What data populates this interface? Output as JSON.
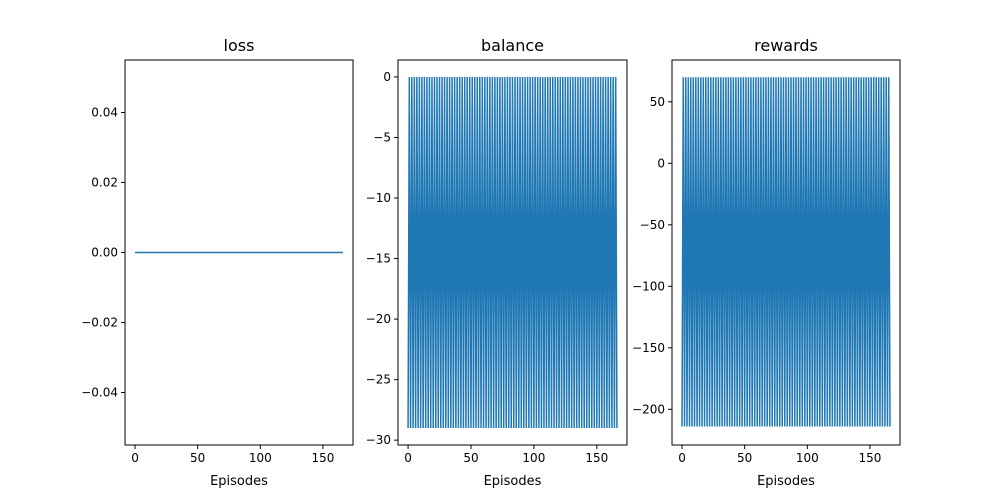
{
  "chart_data": [
    {
      "type": "line",
      "title": "loss",
      "xlabel": "Episodes",
      "ylabel": "",
      "xlim": [
        -8,
        174
      ],
      "ylim": [
        -0.055,
        0.055
      ],
      "xticks": [
        0,
        50,
        100,
        150
      ],
      "xtick_labels": [
        "0",
        "50",
        "100",
        "150"
      ],
      "yticks": [
        -0.04,
        -0.02,
        0.0,
        0.02,
        0.04
      ],
      "ytick_labels": [
        "−0.04",
        "−0.02",
        "0.00",
        "0.02",
        "0.04"
      ],
      "color": "#1f77b4",
      "grid": false,
      "series": [
        {
          "pattern": "constant",
          "x_start": 0,
          "x_end": 166,
          "value": 0.0
        }
      ]
    },
    {
      "type": "line",
      "title": "balance",
      "xlabel": "Episodes",
      "ylabel": "",
      "xlim": [
        -8,
        174
      ],
      "ylim": [
        -30.4,
        1.4
      ],
      "xticks": [
        0,
        50,
        100,
        150
      ],
      "xtick_labels": [
        "0",
        "50",
        "100",
        "150"
      ],
      "yticks": [
        -30,
        -25,
        -20,
        -15,
        -10,
        -5,
        0
      ],
      "ytick_labels": [
        "−30",
        "−25",
        "−20",
        "−15",
        "−10",
        "−5",
        "0"
      ],
      "color": "#1f77b4",
      "grid": false,
      "series": [
        {
          "pattern": "alternating",
          "x_start": 0,
          "x_end": 166,
          "high": 0,
          "low": -29
        }
      ]
    },
    {
      "type": "line",
      "title": "rewards",
      "xlabel": "Episodes",
      "ylabel": "",
      "xlim": [
        -8,
        174
      ],
      "ylim": [
        -229,
        84
      ],
      "xticks": [
        0,
        50,
        100,
        150
      ],
      "xtick_labels": [
        "0",
        "50",
        "100",
        "150"
      ],
      "yticks": [
        -200,
        -150,
        -100,
        -50,
        0,
        50
      ],
      "ytick_labels": [
        "−200",
        "−150",
        "−100",
        "−50",
        "0",
        "50"
      ],
      "color": "#1f77b4",
      "grid": false,
      "series": [
        {
          "pattern": "alternating",
          "x_start": 0,
          "x_end": 166,
          "high": 70,
          "low": -214
        }
      ]
    }
  ]
}
